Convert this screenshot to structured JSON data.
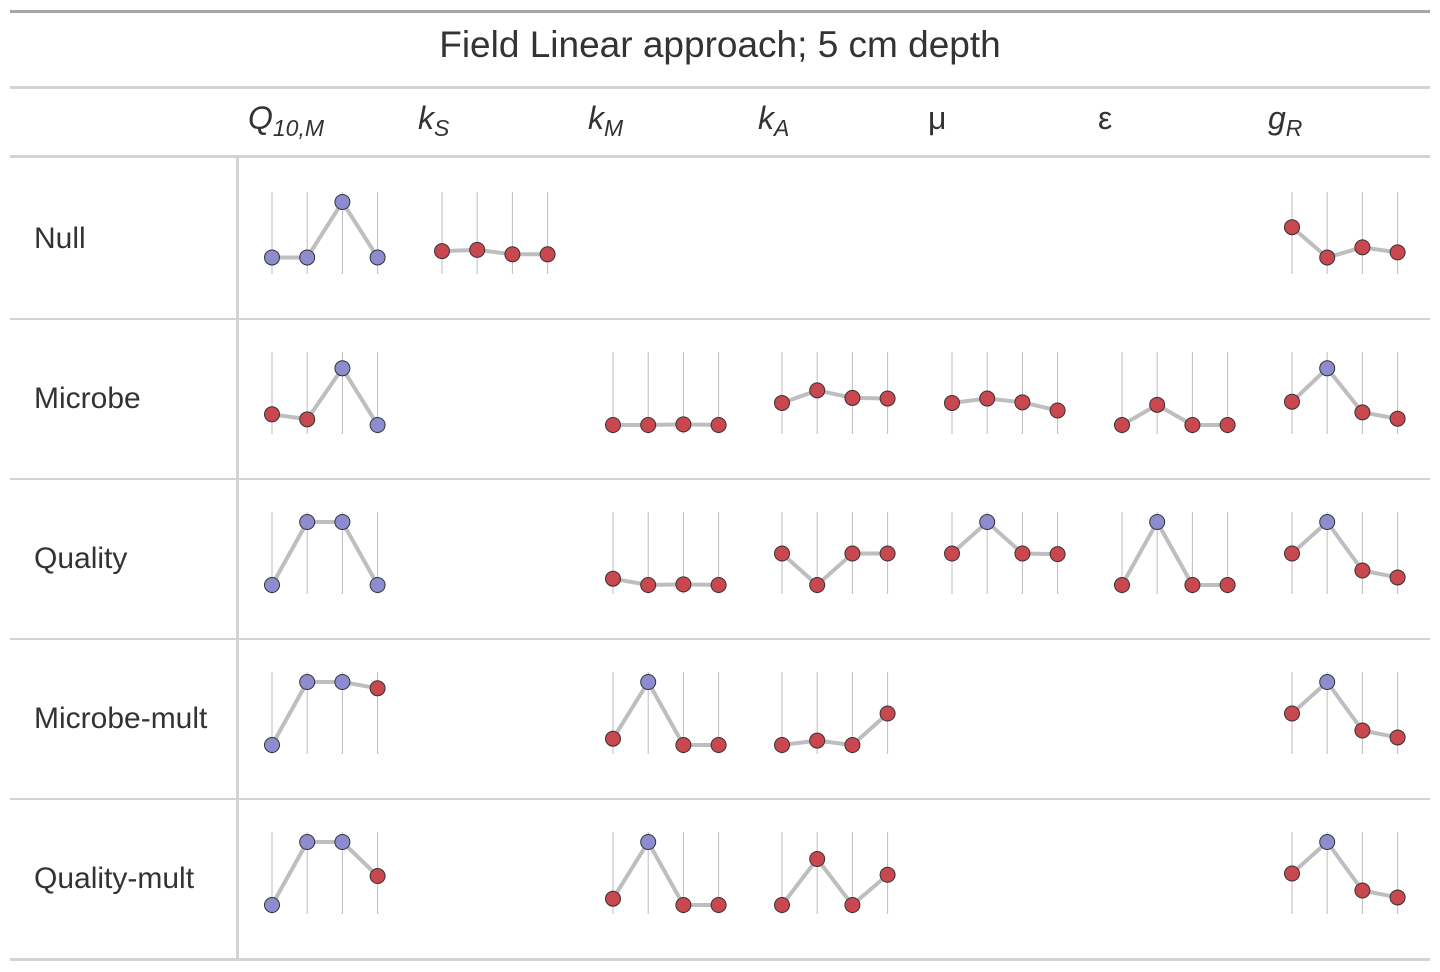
{
  "table": {
    "title": "Field Linear approach; 5 cm depth",
    "columns": [
      {
        "main": "Q",
        "sub": "10,M",
        "italic": true
      },
      {
        "main": "k",
        "sub": "S",
        "italic": true
      },
      {
        "main": "k",
        "sub": "M",
        "italic": true
      },
      {
        "main": "k",
        "sub": "A",
        "italic": true
      },
      {
        "main": "μ",
        "sub": "",
        "italic": false
      },
      {
        "main": "ε",
        "sub": "",
        "italic": false
      },
      {
        "main": "g",
        "sub": "R",
        "italic": true
      }
    ],
    "rows": [
      "Null",
      "Microbe",
      "Quality",
      "Microbe-mult",
      "Quality-mult"
    ]
  },
  "colors": {
    "highlight_point": "#8c8cce",
    "regular_point": "#c9474f",
    "point_stroke": "#333333",
    "trend_line": "#bebebe",
    "gridline": "#bdbdbd",
    "rule": "#d3d3d3",
    "text": "#333333"
  },
  "chart_data": {
    "type": "line",
    "description_note": "",
    "x": [
      1,
      2,
      3,
      4
    ],
    "ylim": [
      0,
      1
    ],
    "grid": true,
    "series": [
      {
        "row": "Null",
        "col": "Q10M",
        "values": [
          0.12,
          0.12,
          1.0,
          0.12
        ],
        "highlight": [
          true,
          true,
          true,
          true
        ]
      },
      {
        "row": "Null",
        "col": "kS",
        "values": [
          0.22,
          0.24,
          0.17,
          0.17
        ],
        "highlight": [
          false,
          false,
          false,
          false
        ]
      },
      {
        "row": "Null",
        "col": "gR",
        "values": [
          0.6,
          0.12,
          0.28,
          0.2
        ],
        "highlight": [
          false,
          false,
          false,
          false
        ]
      },
      {
        "row": "Microbe",
        "col": "Q10M",
        "values": [
          0.17,
          0.09,
          0.9,
          0.0
        ],
        "highlight": [
          false,
          false,
          true,
          true
        ]
      },
      {
        "row": "Microbe",
        "col": "kM",
        "values": [
          0.0,
          0.0,
          0.01,
          0.0
        ],
        "highlight": [
          false,
          false,
          false,
          false
        ]
      },
      {
        "row": "Microbe",
        "col": "kA",
        "values": [
          0.35,
          0.55,
          0.43,
          0.42
        ],
        "highlight": [
          false,
          false,
          false,
          false
        ]
      },
      {
        "row": "Microbe",
        "col": "mu",
        "values": [
          0.35,
          0.42,
          0.36,
          0.23
        ],
        "highlight": [
          false,
          false,
          false,
          false
        ]
      },
      {
        "row": "Microbe",
        "col": "epsilon",
        "values": [
          0.0,
          0.32,
          0.0,
          0.0
        ],
        "highlight": [
          false,
          false,
          false,
          false
        ]
      },
      {
        "row": "Microbe",
        "col": "gR",
        "values": [
          0.37,
          0.9,
          0.2,
          0.1
        ],
        "highlight": [
          false,
          true,
          false,
          false
        ]
      },
      {
        "row": "Quality",
        "col": "Q10M",
        "values": [
          0.0,
          1.0,
          1.0,
          0.0
        ],
        "highlight": [
          true,
          true,
          true,
          true
        ]
      },
      {
        "row": "Quality",
        "col": "kM",
        "values": [
          0.1,
          0.0,
          0.01,
          0.0
        ],
        "highlight": [
          false,
          false,
          false,
          false
        ]
      },
      {
        "row": "Quality",
        "col": "kA",
        "values": [
          0.5,
          0.0,
          0.5,
          0.5
        ],
        "highlight": [
          false,
          false,
          false,
          false
        ]
      },
      {
        "row": "Quality",
        "col": "mu",
        "values": [
          0.5,
          1.0,
          0.5,
          0.49
        ],
        "highlight": [
          false,
          true,
          false,
          false
        ]
      },
      {
        "row": "Quality",
        "col": "epsilon",
        "values": [
          0.0,
          1.0,
          0.0,
          0.0
        ],
        "highlight": [
          false,
          true,
          false,
          false
        ]
      },
      {
        "row": "Quality",
        "col": "gR",
        "values": [
          0.5,
          1.0,
          0.23,
          0.12
        ],
        "highlight": [
          false,
          true,
          false,
          false
        ]
      },
      {
        "row": "Microbe-mult",
        "col": "Q10M",
        "values": [
          0.0,
          1.0,
          1.0,
          0.9
        ],
        "highlight": [
          true,
          true,
          true,
          false
        ]
      },
      {
        "row": "Microbe-mult",
        "col": "kM",
        "values": [
          0.1,
          1.0,
          0.0,
          0.0
        ],
        "highlight": [
          false,
          true,
          false,
          false
        ]
      },
      {
        "row": "Microbe-mult",
        "col": "kA",
        "values": [
          0.0,
          0.07,
          0.0,
          0.5
        ],
        "highlight": [
          false,
          false,
          false,
          false
        ]
      },
      {
        "row": "Microbe-mult",
        "col": "gR",
        "values": [
          0.5,
          1.0,
          0.23,
          0.12
        ],
        "highlight": [
          false,
          true,
          false,
          false
        ]
      },
      {
        "row": "Quality-mult",
        "col": "Q10M",
        "values": [
          0.0,
          1.0,
          1.0,
          0.46
        ],
        "highlight": [
          true,
          true,
          true,
          false
        ]
      },
      {
        "row": "Quality-mult",
        "col": "kM",
        "values": [
          0.1,
          1.0,
          0.0,
          0.0
        ],
        "highlight": [
          false,
          true,
          false,
          false
        ]
      },
      {
        "row": "Quality-mult",
        "col": "kA",
        "values": [
          0.0,
          0.73,
          0.0,
          0.48
        ],
        "highlight": [
          false,
          false,
          false,
          false
        ]
      },
      {
        "row": "Quality-mult",
        "col": "gR",
        "values": [
          0.5,
          1.0,
          0.23,
          0.12
        ],
        "highlight": [
          false,
          true,
          false,
          false
        ]
      }
    ]
  }
}
